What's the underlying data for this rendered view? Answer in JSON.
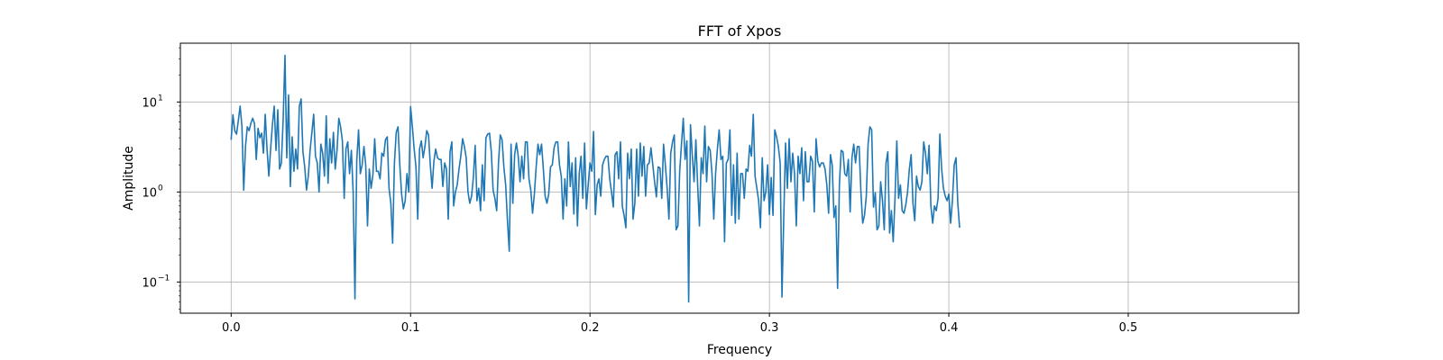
{
  "chart_data": {
    "type": "line",
    "title": "FFT of Xpos",
    "xlabel": "Frequency",
    "ylabel": "Amplitude",
    "yscale": "log",
    "xlim": [
      -0.0283,
      0.595
    ],
    "ylim": [
      0.045,
      45
    ],
    "grid": true,
    "color": "#1f77b4",
    "xticks": [
      {
        "value": 0.0,
        "label": "0.0"
      },
      {
        "value": 0.1,
        "label": "0.1"
      },
      {
        "value": 0.2,
        "label": "0.2"
      },
      {
        "value": 0.3,
        "label": "0.3"
      },
      {
        "value": 0.4,
        "label": "0.4"
      },
      {
        "value": 0.5,
        "label": "0.5"
      }
    ],
    "yticks": [
      {
        "value": 0.1,
        "base": "10",
        "exp": "−1"
      },
      {
        "value": 1,
        "base": "10",
        "exp": "0"
      },
      {
        "value": 10,
        "base": "10",
        "exp": "1"
      }
    ],
    "series": [
      {
        "x_start": 0,
        "x_step": 0.001,
        "values": [
          3.8,
          7.2,
          4.8,
          4.4,
          6.2,
          9.0,
          5.4,
          1.05,
          3.2,
          5.3,
          4.8,
          5.8,
          6.6,
          5.8,
          2.3,
          5.1,
          4.0,
          4.5,
          2.7,
          7.3,
          3.0,
          1.5,
          3.0,
          5.6,
          9.0,
          2.9,
          8.2,
          1.8,
          2.1,
          6.5,
          33.0,
          2.4,
          12.0,
          1.15,
          4.1,
          1.7,
          3.0,
          1.8,
          9.0,
          10.8,
          2.8,
          1.9,
          1.05,
          1.5,
          2.9,
          4.6,
          7.3,
          2.5,
          2.1,
          1.0,
          3.4,
          2.7,
          1.5,
          7.0,
          1.25,
          3.9,
          2.1,
          4.6,
          1.8,
          2.9,
          6.6,
          5.3,
          3.7,
          0.85,
          3.0,
          3.6,
          1.6,
          2.9,
          1.0,
          0.065,
          2.2,
          4.9,
          1.6,
          2.0,
          3.2,
          2.0,
          0.42,
          1.8,
          1.1,
          1.55,
          3.9,
          1.7,
          1.7,
          1.4,
          2.7,
          2.5,
          3.8,
          4.1,
          1.1,
          0.75,
          0.27,
          2.1,
          4.6,
          5.3,
          2.0,
          0.95,
          0.65,
          0.8,
          1.6,
          1.0,
          8.9,
          5.3,
          3.0,
          1.9,
          0.5,
          3.0,
          3.7,
          2.4,
          3.2,
          4.8,
          4.3,
          2.0,
          1.1,
          2.2,
          3.0,
          2.4,
          2.3,
          2.3,
          1.15,
          2.1,
          1.8,
          0.5,
          2.8,
          3.6,
          0.7,
          1.0,
          1.2,
          1.8,
          2.5,
          3.9,
          3.2,
          2.4,
          1.0,
          0.75,
          0.9,
          1.45,
          3.3,
          0.8,
          1.1,
          0.62,
          2.0,
          0.8,
          4.0,
          4.4,
          4.5,
          2.8,
          1.05,
          0.85,
          0.62,
          2.1,
          4.3,
          3.8,
          1.9,
          1.2,
          0.48,
          0.22,
          3.4,
          0.75,
          2.6,
          3.5,
          2.5,
          1.3,
          2.5,
          1.4,
          3.6,
          3.6,
          1.4,
          1.05,
          0.58,
          0.95,
          1.9,
          3.4,
          2.6,
          3.4,
          1.8,
          0.9,
          0.75,
          0.95,
          1.9,
          2.0,
          3.1,
          3.6,
          3.6,
          2.0,
          1.5,
          0.5,
          1.4,
          0.7,
          3.6,
          1.15,
          2.1,
          0.57,
          2.4,
          0.42,
          1.6,
          2.5,
          0.85,
          3.5,
          0.65,
          1.2,
          2.1,
          1.7,
          4.7,
          0.56,
          1.2,
          1.4,
          0.9,
          2.0,
          2.3,
          2.5,
          2.5,
          1.4,
          1.0,
          0.68,
          2.6,
          2.8,
          1.4,
          3.6,
          0.7,
          0.55,
          0.4,
          2.7,
          1.4,
          3.0,
          0.5,
          0.75,
          3.0,
          0.9,
          3.5,
          1.5,
          3.2,
          0.9,
          2.0,
          2.1,
          3.1,
          2.0,
          1.3,
          0.88,
          1.9,
          1.85,
          0.85,
          3.4,
          2.0,
          1.1,
          0.5,
          2.7,
          3.6,
          4.3,
          0.38,
          0.42,
          1.7,
          3.4,
          6.6,
          2.3,
          3.7,
          0.06,
          5.6,
          2.6,
          1.3,
          3.8,
          1.2,
          0.42,
          2.4,
          1.6,
          5.4,
          1.3,
          3.2,
          2.9,
          1.6,
          0.5,
          1.6,
          3.0,
          4.9,
          2.3,
          2.5,
          0.28,
          2.1,
          2.3,
          4.9,
          0.55,
          2.0,
          0.45,
          2.7,
          0.5,
          1.6,
          1.6,
          0.85,
          1.8,
          1.7,
          3.3,
          2.5,
          7.3,
          1.5,
          1.1,
          0.8,
          0.4,
          2.4,
          0.8,
          1.0,
          2.0,
          0.56,
          1.45,
          0.55,
          4.9,
          4.1,
          3.2,
          2.1,
          0.068,
          0.52,
          3.5,
          1.1,
          3.9,
          1.3,
          2.7,
          1.6,
          0.42,
          2.5,
          1.6,
          3.1,
          0.8,
          2.8,
          1.3,
          1.3,
          2.5,
          2.2,
          0.6,
          3.9,
          2.2,
          1.9,
          2.1,
          2.1,
          1.8,
          1.2,
          0.58,
          2.6,
          2.0,
          0.52,
          0.7,
          0.085,
          1.2,
          2.9,
          2.8,
          1.6,
          1.5,
          2.3,
          0.6,
          2.4,
          3.4,
          2.1,
          3.2,
          3.2,
          1.0,
          0.45,
          0.55,
          0.9,
          3.4,
          5.3,
          4.9,
          0.68,
          0.98,
          0.38,
          0.42,
          1.3,
          0.82,
          0.38,
          2.1,
          2.8,
          0.35,
          0.62,
          0.28,
          0.85,
          3.7,
          0.85,
          1.2,
          0.62,
          0.58,
          0.72,
          1.0,
          1.8,
          2.6,
          0.75,
          0.48,
          1.5,
          1.15,
          1.05,
          1.3,
          3.6,
          2.7,
          1.6,
          3.3,
          0.7,
          0.45,
          0.7,
          0.62,
          0.85,
          4.4,
          1.8,
          1.1,
          0.9,
          0.8,
          0.95,
          0.45,
          0.8,
          2.0,
          2.4,
          0.75,
          0.4
        ]
      }
    ]
  }
}
